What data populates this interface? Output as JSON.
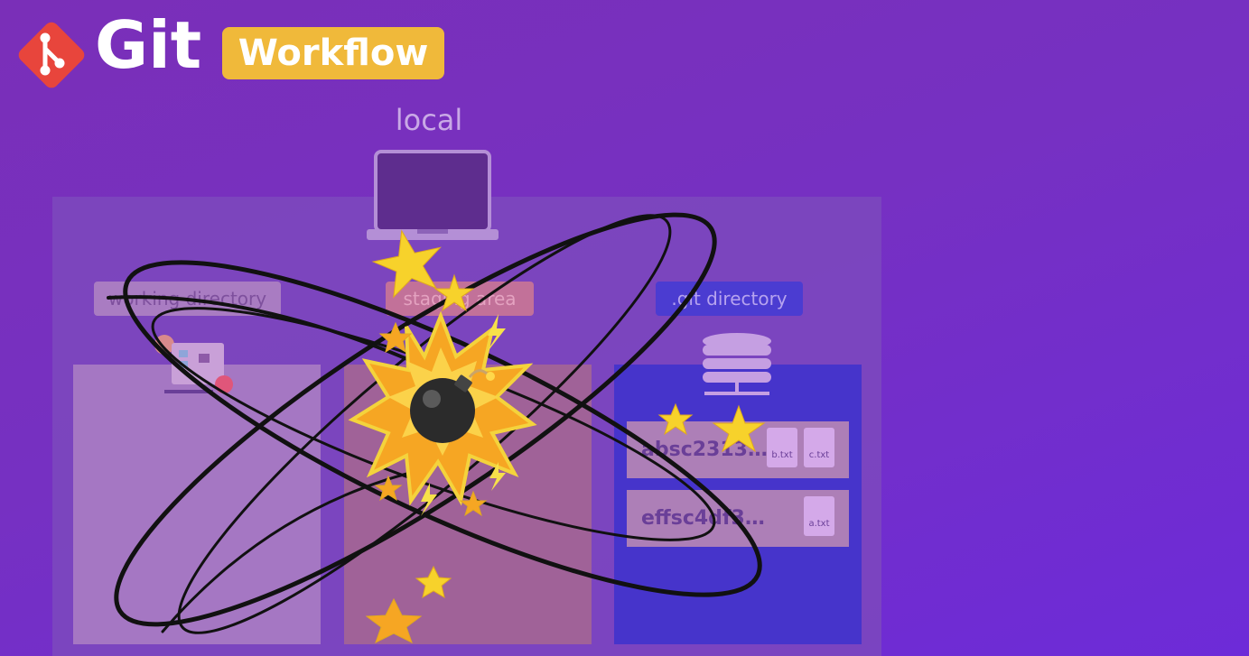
{
  "header": {
    "logo_text": "Git",
    "badge": "Workflow"
  },
  "local_label": "local",
  "sections": {
    "working_directory": "working directory",
    "staging_area": "staging area",
    "git_directory": ".git directory"
  },
  "commits": [
    {
      "hash": "absc2313…",
      "files": [
        "b.txt",
        "c.txt"
      ]
    },
    {
      "hash": "effsc4df3…",
      "files": [
        "a.txt"
      ]
    }
  ],
  "colors": {
    "background": "#7630c2",
    "git_logo": "#e8453c",
    "badge": "#f0b93a",
    "explosion": "#f6a623",
    "star": "#f7d22b"
  },
  "icons": [
    "git-logo-icon",
    "laptop-icon",
    "files-icon",
    "database-icon",
    "bomb-icon",
    "explosion-icon",
    "star-icon"
  ]
}
